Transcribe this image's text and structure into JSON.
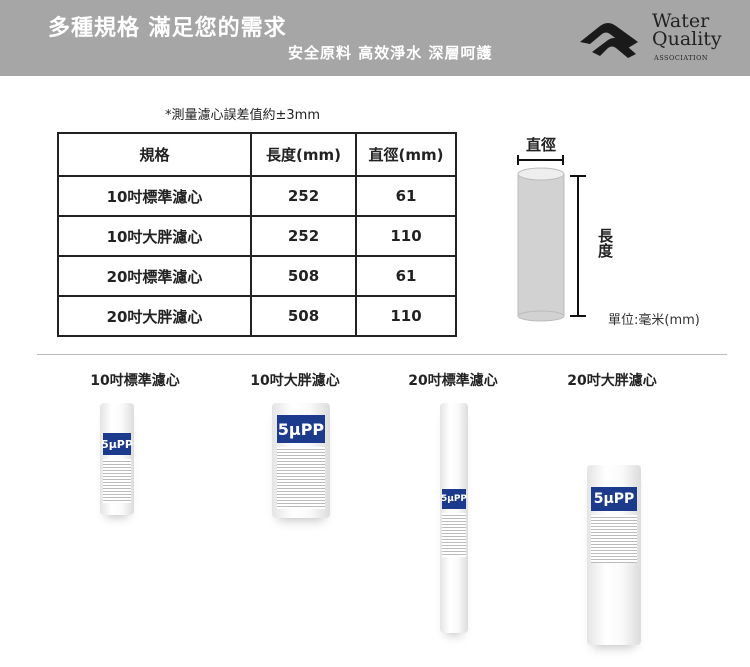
{
  "banner": {
    "title": "多種規格  滿足您的需求",
    "subtitle": "安全原料  高效淨水  深層呵護",
    "logo": {
      "line1": "Water",
      "line2": "Quality",
      "line3": "ASSOCIATION"
    }
  },
  "note": "*測量濾心誤差值約±3mm",
  "table": {
    "headers": [
      "規格",
      "長度(mm)",
      "直徑(mm)"
    ],
    "rows": [
      [
        "10吋標準濾心",
        "252",
        "61"
      ],
      [
        "10吋大胖濾心",
        "252",
        "110"
      ],
      [
        "20吋標準濾心",
        "508",
        "61"
      ],
      [
        "20吋大胖濾心",
        "508",
        "110"
      ]
    ]
  },
  "diagram": {
    "diameter_label": "直徑",
    "length_label": "長度",
    "unit": "單位:毫米(mm)"
  },
  "products": [
    {
      "label": "10吋標準濾心",
      "badge": "5μPP"
    },
    {
      "label": "10吋大胖濾心",
      "badge": "5μPP"
    },
    {
      "label": "20吋標準濾心",
      "badge": "5μPP"
    },
    {
      "label": "20吋大胖濾心",
      "badge": "5μPP"
    }
  ],
  "colors": {
    "banner": "#a6a6a6",
    "label_blue": "#1c3b8c"
  }
}
